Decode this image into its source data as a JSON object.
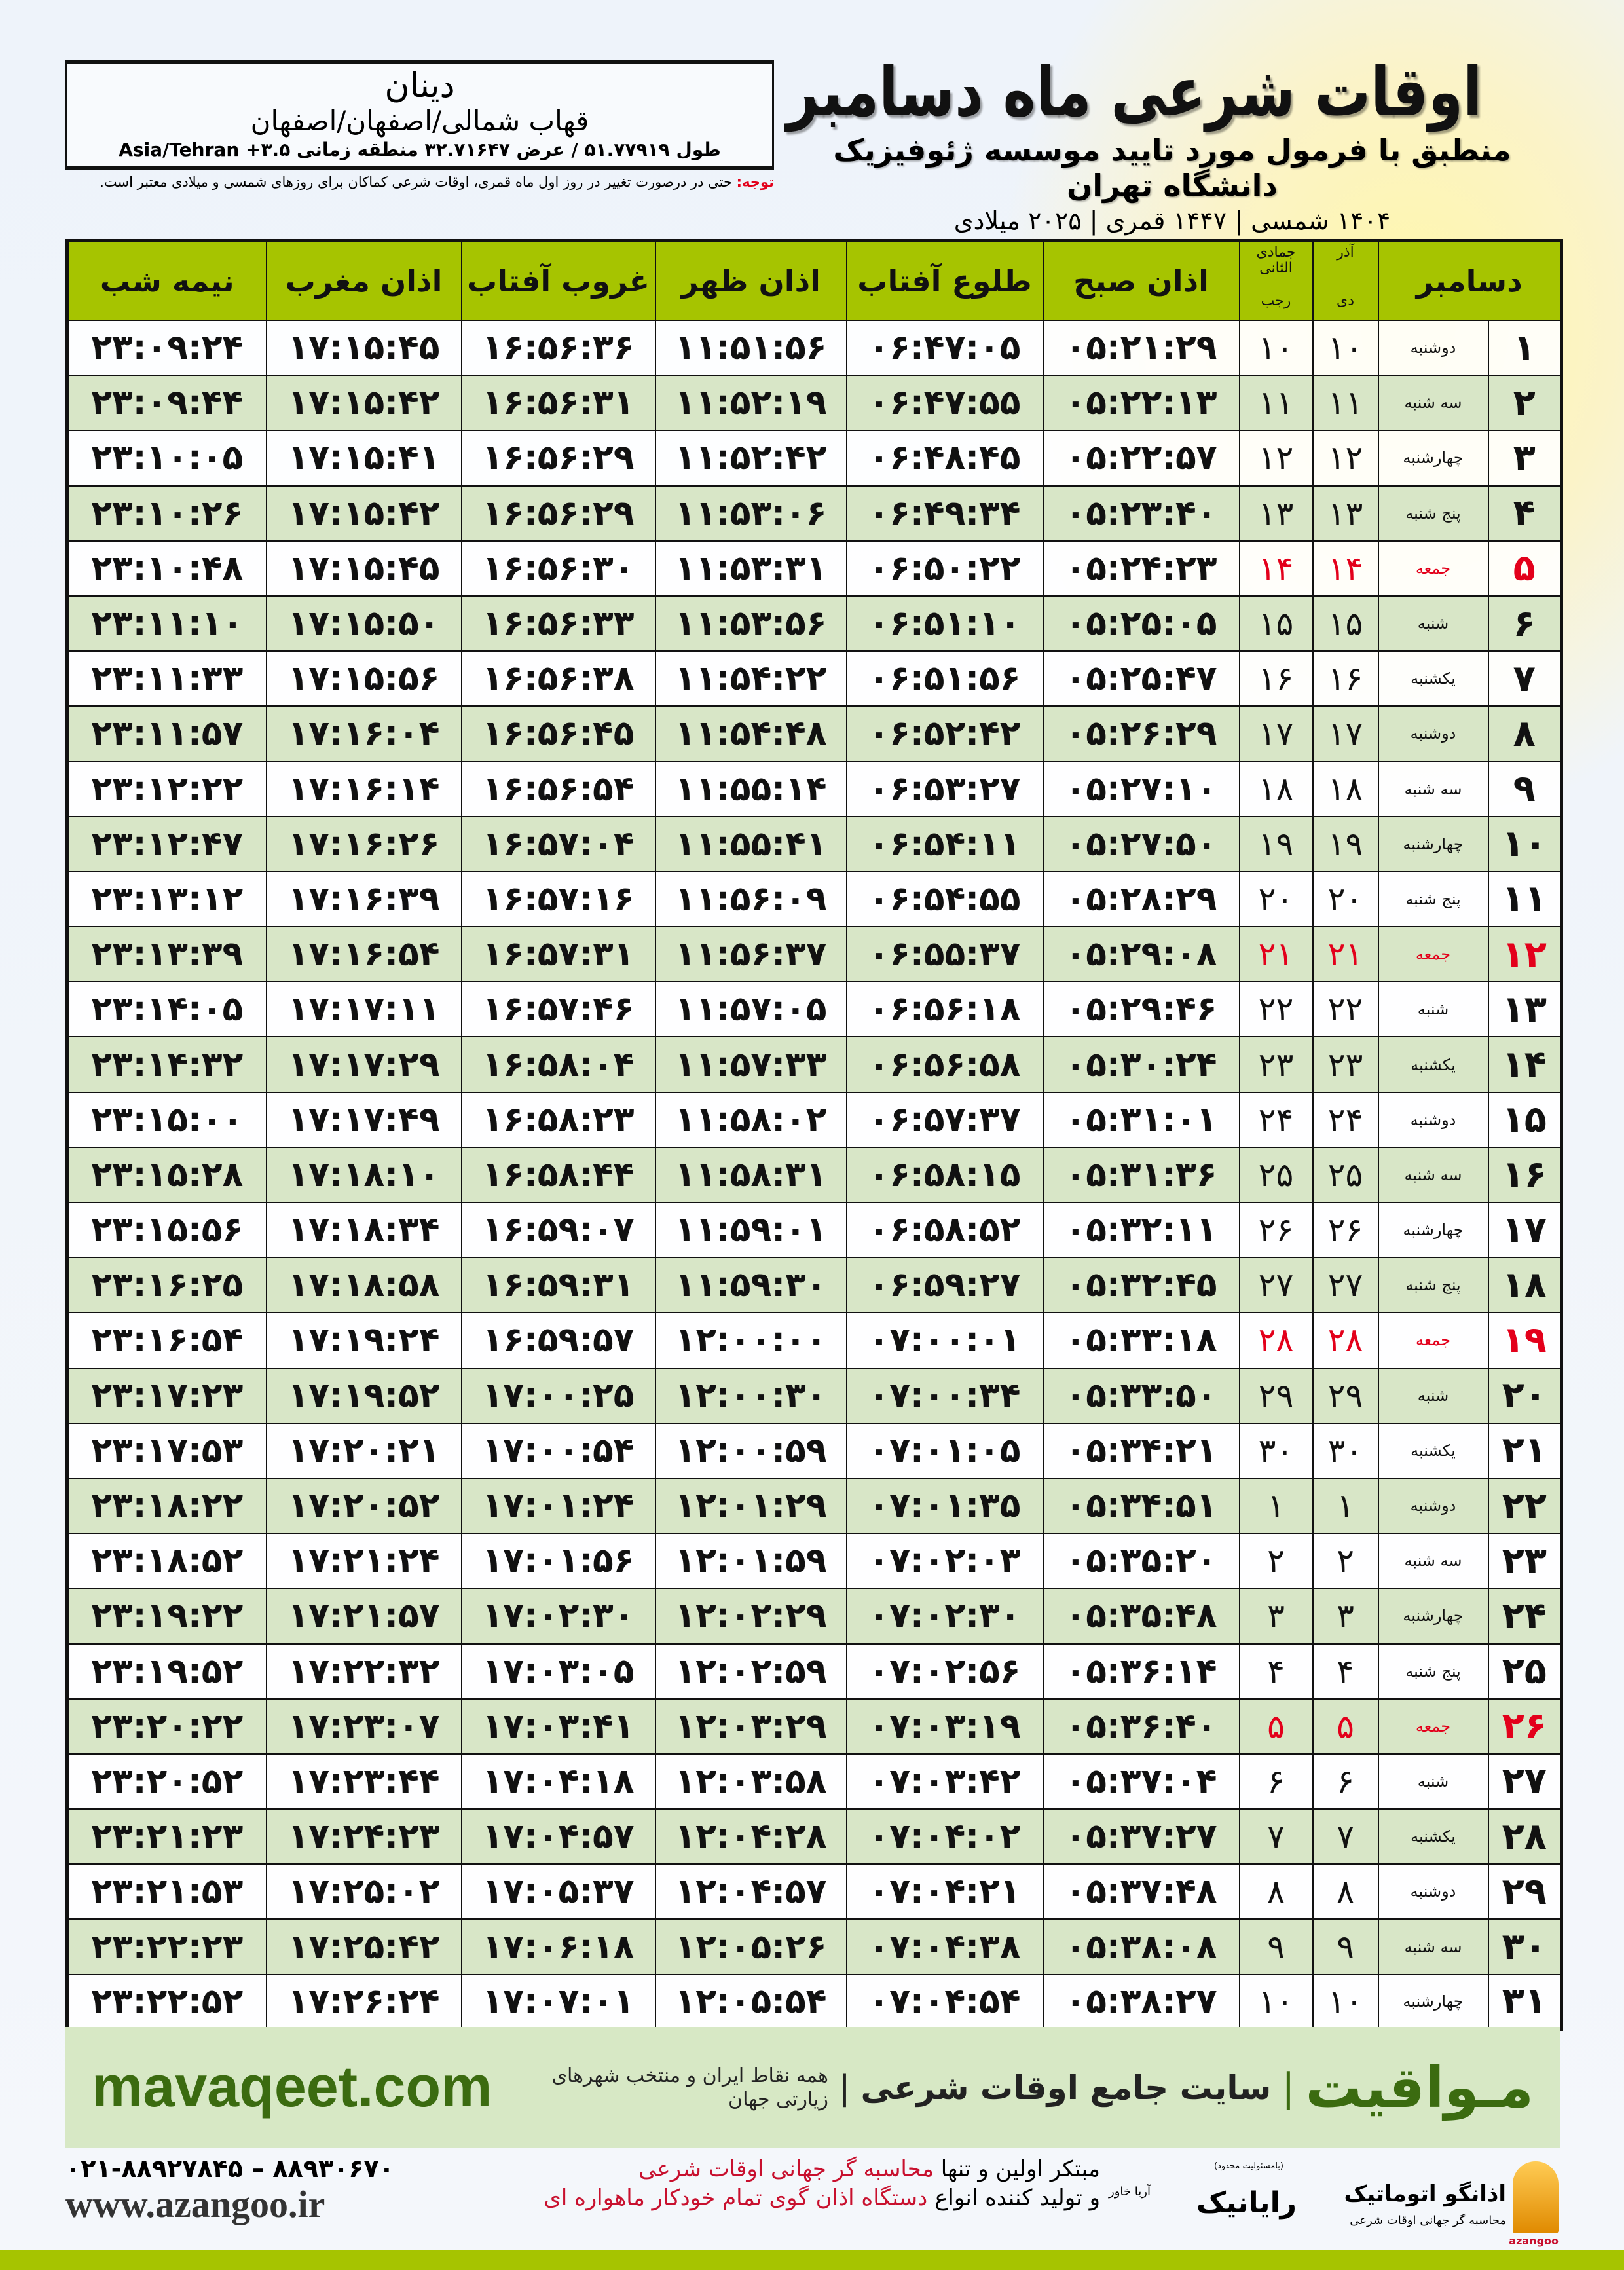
{
  "header": {
    "title": "اوقات شرعی ماه دسامبر",
    "subtitle": "منطبق با فرمول مورد تایید موسسه ژئوفیزیک دانشگاه تهران",
    "years": "۱۴۰۴ شمسی | ۱۴۴۷ قمری | ۲۰۲۵ میلادی"
  },
  "city": {
    "name": "دینان",
    "region": "قهاب شمالی/اصفهان/اصفهان",
    "coords": "طول ۵۱.۷۷۹۱۹ / عرض ۳۲.۷۱۶۴۷ منطقه زمانی ۳.۵+ Asia/Tehran"
  },
  "note": {
    "label": "توجه:",
    "text": " حتی در درصورت تغییر در روز اول ماه قمری، اوقات شرعی کماکان برای روزهای شمسی و میلادی معتبر است."
  },
  "columns": {
    "day": "دسامبر",
    "solar_month_top": "آذر",
    "solar_month": "دی",
    "lunar_month_top": "جمادی الثانی",
    "lunar_month": "رجب",
    "fajr": "اذان صبح",
    "sunrise": "طلوع آفتاب",
    "dhuhr": "اذان ظهر",
    "sunset": "غروب آفتاب",
    "maghrib": "اذان مغرب",
    "midnight": "نیمه شب"
  },
  "colors": {
    "header_green": "#a6c400",
    "row_green": "#d8e6c7",
    "holiday_red": "#e3001b",
    "brand_green": "#3b6b10"
  },
  "holidays": [
    "۵",
    "۱۲",
    "۱۹",
    "۲۶"
  ],
  "rows": [
    {
      "day": "۱",
      "weekday": "دوشنبه",
      "solar": "۱۰",
      "lunar": "۱۰",
      "fajr": "۰۵:۲۱:۲۹",
      "sunrise": "۰۶:۴۷:۰۵",
      "dhuhr": "۱۱:۵۱:۵۶",
      "sunset": "۱۶:۵۶:۳۶",
      "maghrib": "۱۷:۱۵:۴۵",
      "midnight": "۲۳:۰۹:۲۴"
    },
    {
      "day": "۲",
      "weekday": "سه شنبه",
      "solar": "۱۱",
      "lunar": "۱۱",
      "fajr": "۰۵:۲۲:۱۳",
      "sunrise": "۰۶:۴۷:۵۵",
      "dhuhr": "۱۱:۵۲:۱۹",
      "sunset": "۱۶:۵۶:۳۱",
      "maghrib": "۱۷:۱۵:۴۲",
      "midnight": "۲۳:۰۹:۴۴"
    },
    {
      "day": "۳",
      "weekday": "چهارشنبه",
      "solar": "۱۲",
      "lunar": "۱۲",
      "fajr": "۰۵:۲۲:۵۷",
      "sunrise": "۰۶:۴۸:۴۵",
      "dhuhr": "۱۱:۵۲:۴۲",
      "sunset": "۱۶:۵۶:۲۹",
      "maghrib": "۱۷:۱۵:۴۱",
      "midnight": "۲۳:۱۰:۰۵"
    },
    {
      "day": "۴",
      "weekday": "پنج شنبه",
      "solar": "۱۳",
      "lunar": "۱۳",
      "fajr": "۰۵:۲۳:۴۰",
      "sunrise": "۰۶:۴۹:۳۴",
      "dhuhr": "۱۱:۵۳:۰۶",
      "sunset": "۱۶:۵۶:۲۹",
      "maghrib": "۱۷:۱۵:۴۲",
      "midnight": "۲۳:۱۰:۲۶"
    },
    {
      "day": "۵",
      "weekday": "جمعه",
      "solar": "۱۴",
      "lunar": "۱۴",
      "fajr": "۰۵:۲۴:۲۳",
      "sunrise": "۰۶:۵۰:۲۲",
      "dhuhr": "۱۱:۵۳:۳۱",
      "sunset": "۱۶:۵۶:۳۰",
      "maghrib": "۱۷:۱۵:۴۵",
      "midnight": "۲۳:۱۰:۴۸"
    },
    {
      "day": "۶",
      "weekday": "شنبه",
      "solar": "۱۵",
      "lunar": "۱۵",
      "fajr": "۰۵:۲۵:۰۵",
      "sunrise": "۰۶:۵۱:۱۰",
      "dhuhr": "۱۱:۵۳:۵۶",
      "sunset": "۱۶:۵۶:۳۳",
      "maghrib": "۱۷:۱۵:۵۰",
      "midnight": "۲۳:۱۱:۱۰"
    },
    {
      "day": "۷",
      "weekday": "یکشنبه",
      "solar": "۱۶",
      "lunar": "۱۶",
      "fajr": "۰۵:۲۵:۴۷",
      "sunrise": "۰۶:۵۱:۵۶",
      "dhuhr": "۱۱:۵۴:۲۲",
      "sunset": "۱۶:۵۶:۳۸",
      "maghrib": "۱۷:۱۵:۵۶",
      "midnight": "۲۳:۱۱:۳۳"
    },
    {
      "day": "۸",
      "weekday": "دوشنبه",
      "solar": "۱۷",
      "lunar": "۱۷",
      "fajr": "۰۵:۲۶:۲۹",
      "sunrise": "۰۶:۵۲:۴۲",
      "dhuhr": "۱۱:۵۴:۴۸",
      "sunset": "۱۶:۵۶:۴۵",
      "maghrib": "۱۷:۱۶:۰۴",
      "midnight": "۲۳:۱۱:۵۷"
    },
    {
      "day": "۹",
      "weekday": "سه شنبه",
      "solar": "۱۸",
      "lunar": "۱۸",
      "fajr": "۰۵:۲۷:۱۰",
      "sunrise": "۰۶:۵۳:۲۷",
      "dhuhr": "۱۱:۵۵:۱۴",
      "sunset": "۱۶:۵۶:۵۴",
      "maghrib": "۱۷:۱۶:۱۴",
      "midnight": "۲۳:۱۲:۲۲"
    },
    {
      "day": "۱۰",
      "weekday": "چهارشنبه",
      "solar": "۱۹",
      "lunar": "۱۹",
      "fajr": "۰۵:۲۷:۵۰",
      "sunrise": "۰۶:۵۴:۱۱",
      "dhuhr": "۱۱:۵۵:۴۱",
      "sunset": "۱۶:۵۷:۰۴",
      "maghrib": "۱۷:۱۶:۲۶",
      "midnight": "۲۳:۱۲:۴۷"
    },
    {
      "day": "۱۱",
      "weekday": "پنج شنبه",
      "solar": "۲۰",
      "lunar": "۲۰",
      "fajr": "۰۵:۲۸:۲۹",
      "sunrise": "۰۶:۵۴:۵۵",
      "dhuhr": "۱۱:۵۶:۰۹",
      "sunset": "۱۶:۵۷:۱۶",
      "maghrib": "۱۷:۱۶:۳۹",
      "midnight": "۲۳:۱۳:۱۲"
    },
    {
      "day": "۱۲",
      "weekday": "جمعه",
      "solar": "۲۱",
      "lunar": "۲۱",
      "fajr": "۰۵:۲۹:۰۸",
      "sunrise": "۰۶:۵۵:۳۷",
      "dhuhr": "۱۱:۵۶:۳۷",
      "sunset": "۱۶:۵۷:۳۱",
      "maghrib": "۱۷:۱۶:۵۴",
      "midnight": "۲۳:۱۳:۳۹"
    },
    {
      "day": "۱۳",
      "weekday": "شنبه",
      "solar": "۲۲",
      "lunar": "۲۲",
      "fajr": "۰۵:۲۹:۴۶",
      "sunrise": "۰۶:۵۶:۱۸",
      "dhuhr": "۱۱:۵۷:۰۵",
      "sunset": "۱۶:۵۷:۴۶",
      "maghrib": "۱۷:۱۷:۱۱",
      "midnight": "۲۳:۱۴:۰۵"
    },
    {
      "day": "۱۴",
      "weekday": "یکشنبه",
      "solar": "۲۳",
      "lunar": "۲۳",
      "fajr": "۰۵:۳۰:۲۴",
      "sunrise": "۰۶:۵۶:۵۸",
      "dhuhr": "۱۱:۵۷:۳۳",
      "sunset": "۱۶:۵۸:۰۴",
      "maghrib": "۱۷:۱۷:۲۹",
      "midnight": "۲۳:۱۴:۳۲"
    },
    {
      "day": "۱۵",
      "weekday": "دوشنبه",
      "solar": "۲۴",
      "lunar": "۲۴",
      "fajr": "۰۵:۳۱:۰۱",
      "sunrise": "۰۶:۵۷:۳۷",
      "dhuhr": "۱۱:۵۸:۰۲",
      "sunset": "۱۶:۵۸:۲۳",
      "maghrib": "۱۷:۱۷:۴۹",
      "midnight": "۲۳:۱۵:۰۰"
    },
    {
      "day": "۱۶",
      "weekday": "سه شنبه",
      "solar": "۲۵",
      "lunar": "۲۵",
      "fajr": "۰۵:۳۱:۳۶",
      "sunrise": "۰۶:۵۸:۱۵",
      "dhuhr": "۱۱:۵۸:۳۱",
      "sunset": "۱۶:۵۸:۴۴",
      "maghrib": "۱۷:۱۸:۱۰",
      "midnight": "۲۳:۱۵:۲۸"
    },
    {
      "day": "۱۷",
      "weekday": "چهارشنبه",
      "solar": "۲۶",
      "lunar": "۲۶",
      "fajr": "۰۵:۳۲:۱۱",
      "sunrise": "۰۶:۵۸:۵۲",
      "dhuhr": "۱۱:۵۹:۰۱",
      "sunset": "۱۶:۵۹:۰۷",
      "maghrib": "۱۷:۱۸:۳۴",
      "midnight": "۲۳:۱۵:۵۶"
    },
    {
      "day": "۱۸",
      "weekday": "پنج شنبه",
      "solar": "۲۷",
      "lunar": "۲۷",
      "fajr": "۰۵:۳۲:۴۵",
      "sunrise": "۰۶:۵۹:۲۷",
      "dhuhr": "۱۱:۵۹:۳۰",
      "sunset": "۱۶:۵۹:۳۱",
      "maghrib": "۱۷:۱۸:۵۸",
      "midnight": "۲۳:۱۶:۲۵"
    },
    {
      "day": "۱۹",
      "weekday": "جمعه",
      "solar": "۲۸",
      "lunar": "۲۸",
      "fajr": "۰۵:۳۳:۱۸",
      "sunrise": "۰۷:۰۰:۰۱",
      "dhuhr": "۱۲:۰۰:۰۰",
      "sunset": "۱۶:۵۹:۵۷",
      "maghrib": "۱۷:۱۹:۲۴",
      "midnight": "۲۳:۱۶:۵۴"
    },
    {
      "day": "۲۰",
      "weekday": "شنبه",
      "solar": "۲۹",
      "lunar": "۲۹",
      "fajr": "۰۵:۳۳:۵۰",
      "sunrise": "۰۷:۰۰:۳۴",
      "dhuhr": "۱۲:۰۰:۳۰",
      "sunset": "۱۷:۰۰:۲۵",
      "maghrib": "۱۷:۱۹:۵۲",
      "midnight": "۲۳:۱۷:۲۳"
    },
    {
      "day": "۲۱",
      "weekday": "یکشنبه",
      "solar": "۳۰",
      "lunar": "۳۰",
      "fajr": "۰۵:۳۴:۲۱",
      "sunrise": "۰۷:۰۱:۰۵",
      "dhuhr": "۱۲:۰۰:۵۹",
      "sunset": "۱۷:۰۰:۵۴",
      "maghrib": "۱۷:۲۰:۲۱",
      "midnight": "۲۳:۱۷:۵۳"
    },
    {
      "day": "۲۲",
      "weekday": "دوشنبه",
      "solar": "۱",
      "lunar": "۱",
      "fajr": "۰۵:۳۴:۵۱",
      "sunrise": "۰۷:۰۱:۳۵",
      "dhuhr": "۱۲:۰۱:۲۹",
      "sunset": "۱۷:۰۱:۲۴",
      "maghrib": "۱۷:۲۰:۵۲",
      "midnight": "۲۳:۱۸:۲۲"
    },
    {
      "day": "۲۳",
      "weekday": "سه شنبه",
      "solar": "۲",
      "lunar": "۲",
      "fajr": "۰۵:۳۵:۲۰",
      "sunrise": "۰۷:۰۲:۰۳",
      "dhuhr": "۱۲:۰۱:۵۹",
      "sunset": "۱۷:۰۱:۵۶",
      "maghrib": "۱۷:۲۱:۲۴",
      "midnight": "۲۳:۱۸:۵۲"
    },
    {
      "day": "۲۴",
      "weekday": "چهارشنبه",
      "solar": "۳",
      "lunar": "۳",
      "fajr": "۰۵:۳۵:۴۸",
      "sunrise": "۰۷:۰۲:۳۰",
      "dhuhr": "۱۲:۰۲:۲۹",
      "sunset": "۱۷:۰۲:۳۰",
      "maghrib": "۱۷:۲۱:۵۷",
      "midnight": "۲۳:۱۹:۲۲"
    },
    {
      "day": "۲۵",
      "weekday": "پنج شنبه",
      "solar": "۴",
      "lunar": "۴",
      "fajr": "۰۵:۳۶:۱۴",
      "sunrise": "۰۷:۰۲:۵۶",
      "dhuhr": "۱۲:۰۲:۵۹",
      "sunset": "۱۷:۰۳:۰۵",
      "maghrib": "۱۷:۲۲:۳۲",
      "midnight": "۲۳:۱۹:۵۲"
    },
    {
      "day": "۲۶",
      "weekday": "جمعه",
      "solar": "۵",
      "lunar": "۵",
      "fajr": "۰۵:۳۶:۴۰",
      "sunrise": "۰۷:۰۳:۱۹",
      "dhuhr": "۱۲:۰۳:۲۹",
      "sunset": "۱۷:۰۳:۴۱",
      "maghrib": "۱۷:۲۳:۰۷",
      "midnight": "۲۳:۲۰:۲۲"
    },
    {
      "day": "۲۷",
      "weekday": "شنبه",
      "solar": "۶",
      "lunar": "۶",
      "fajr": "۰۵:۳۷:۰۴",
      "sunrise": "۰۷:۰۳:۴۲",
      "dhuhr": "۱۲:۰۳:۵۸",
      "sunset": "۱۷:۰۴:۱۸",
      "maghrib": "۱۷:۲۳:۴۴",
      "midnight": "۲۳:۲۰:۵۲"
    },
    {
      "day": "۲۸",
      "weekday": "یکشنبه",
      "solar": "۷",
      "lunar": "۷",
      "fajr": "۰۵:۳۷:۲۷",
      "sunrise": "۰۷:۰۴:۰۲",
      "dhuhr": "۱۲:۰۴:۲۸",
      "sunset": "۱۷:۰۴:۵۷",
      "maghrib": "۱۷:۲۴:۲۳",
      "midnight": "۲۳:۲۱:۲۳"
    },
    {
      "day": "۲۹",
      "weekday": "دوشنبه",
      "solar": "۸",
      "lunar": "۸",
      "fajr": "۰۵:۳۷:۴۸",
      "sunrise": "۰۷:۰۴:۲۱",
      "dhuhr": "۱۲:۰۴:۵۷",
      "sunset": "۱۷:۰۵:۳۷",
      "maghrib": "۱۷:۲۵:۰۲",
      "midnight": "۲۳:۲۱:۵۳"
    },
    {
      "day": "۳۰",
      "weekday": "سه شنبه",
      "solar": "۹",
      "lunar": "۹",
      "fajr": "۰۵:۳۸:۰۸",
      "sunrise": "۰۷:۰۴:۳۸",
      "dhuhr": "۱۲:۰۵:۲۶",
      "sunset": "۱۷:۰۶:۱۸",
      "maghrib": "۱۷:۲۵:۴۲",
      "midnight": "۲۳:۲۲:۲۳"
    },
    {
      "day": "۳۱",
      "weekday": "چهارشنبه",
      "solar": "۱۰",
      "lunar": "۱۰",
      "fajr": "۰۵:۳۸:۲۷",
      "sunrise": "۰۷:۰۴:۵۴",
      "dhuhr": "۱۲:۰۵:۵۴",
      "sunset": "۱۷:۰۷:۰۱",
      "maghrib": "۱۷:۲۶:۲۴",
      "midnight": "۲۳:۲۲:۵۲"
    }
  ],
  "banner": {
    "brand": "مـواقیت",
    "site": "سایت جامع اوقات شرعی",
    "reach": "همه نقاط ایران و منتخب شهرهای زیارتی جهان",
    "url": "mavaqeet.com"
  },
  "footer": {
    "line1_a": "مبتکر اولین و تنها ",
    "line1_b": "محاسبه گر جهانی اوقات شرعی",
    "line2_a": "و تولید کننده انواع ",
    "line2_b": "دستگاه اذان گوی تمام خودکار ماهواره ای",
    "phones": "۰۲۱-۸۸۹۲۷۸۴۵ – ۸۸۹۳۰۶۷۰",
    "website": "www.azangoo.ir",
    "logo_azangoo": {
      "name": "اذانگو اتوماتیک",
      "tagline": "محاسبه گر جهانی اوقات شرعی",
      "latin": "azangoo"
    },
    "logo_raianik": {
      "name": "رایانیک",
      "sub": "آریا خاور",
      "note": "(بامسئولیت محدود)"
    }
  }
}
